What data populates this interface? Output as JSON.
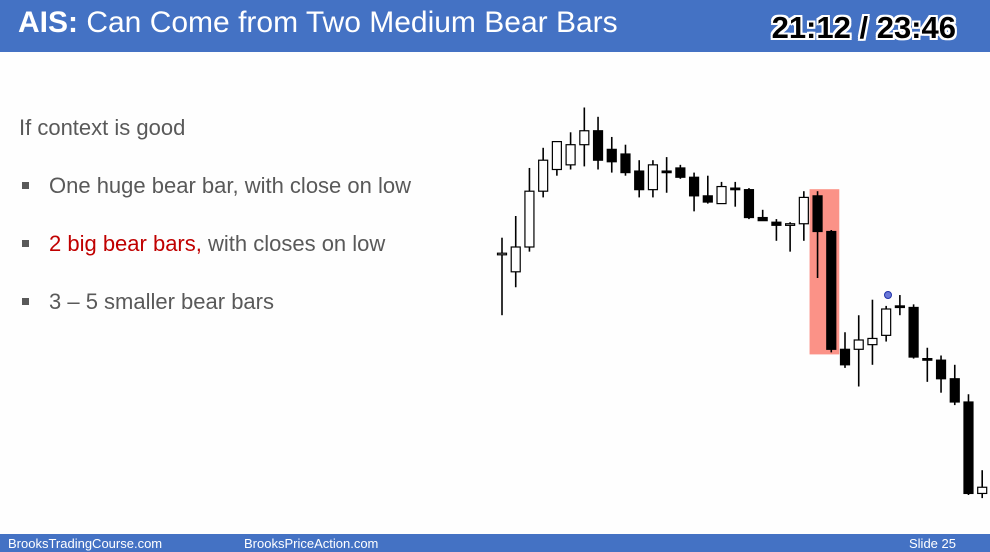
{
  "header": {
    "title_bold": "AIS:",
    "title_rest": " Can Come from Two Medium Bear Bars",
    "timer": "21:12 / 23:46"
  },
  "content": {
    "intro": "If context is good",
    "bullets": [
      {
        "highlight": "",
        "text": "One huge bear bar, with close on low"
      },
      {
        "highlight": "2 big bear bars,",
        "text": " with closes on low"
      },
      {
        "highlight": "",
        "text": "3 – 5 smaller bear bars"
      }
    ]
  },
  "footer": {
    "left": "BrooksTradingCourse.com",
    "center": "BrooksPriceAction.com",
    "right": "Slide  25"
  },
  "colors": {
    "header_bg": "#4472c4",
    "highlight_text": "#c00000",
    "highlight_box": "#fa7f72",
    "bear_body": "#000000",
    "bull_body": "#ffffff"
  },
  "chart_data": {
    "type": "candlestick",
    "annotation": "two medium bear bars highlighted with a red box",
    "highlighted_bars": [
      23,
      24
    ],
    "bars": [
      {
        "o": 148.0,
        "h": 153.0,
        "l": 128.0,
        "c": 148.0
      },
      {
        "o": 142.0,
        "h": 160.0,
        "l": 137.0,
        "c": 150.0
      },
      {
        "o": 150.0,
        "h": 175.5,
        "l": 148.5,
        "c": 168.0
      },
      {
        "o": 168.0,
        "h": 182.0,
        "l": 166.0,
        "c": 178.0
      },
      {
        "o": 175.0,
        "h": 183.5,
        "l": 173.0,
        "c": 184.0
      },
      {
        "o": 176.5,
        "h": 187.0,
        "l": 175.0,
        "c": 183.0
      },
      {
        "o": 183.0,
        "h": 195.0,
        "l": 176.0,
        "c": 187.5
      },
      {
        "o": 187.5,
        "h": 192.0,
        "l": 175.0,
        "c": 178.0
      },
      {
        "o": 181.5,
        "h": 185.5,
        "l": 174.0,
        "c": 177.5
      },
      {
        "o": 180.0,
        "h": 183.0,
        "l": 173.0,
        "c": 174.0
      },
      {
        "o": 174.5,
        "h": 178.0,
        "l": 166.0,
        "c": 168.5
      },
      {
        "o": 168.5,
        "h": 178.0,
        "l": 166.0,
        "c": 176.5
      },
      {
        "o": 174.5,
        "h": 179.0,
        "l": 167.5,
        "c": 174.0
      },
      {
        "o": 175.5,
        "h": 176.5,
        "l": 172.0,
        "c": 172.5
      },
      {
        "o": 172.5,
        "h": 174.0,
        "l": 161.5,
        "c": 166.5
      },
      {
        "o": 166.5,
        "h": 173.0,
        "l": 164.0,
        "c": 164.5
      },
      {
        "o": 164.0,
        "h": 171.0,
        "l": 164.0,
        "c": 169.5
      },
      {
        "o": 169.0,
        "h": 171.0,
        "l": 163.0,
        "c": 168.5
      },
      {
        "o": 168.5,
        "h": 169.0,
        "l": 159.0,
        "c": 159.5
      },
      {
        "o": 159.5,
        "h": 162.0,
        "l": 158.5,
        "c": 158.5
      },
      {
        "o": 158.0,
        "h": 159.0,
        "l": 152.0,
        "c": 157.0
      },
      {
        "o": 157.0,
        "h": 158.0,
        "l": 148.5,
        "c": 157.5
      },
      {
        "o": 157.5,
        "h": 168.0,
        "l": 152.0,
        "c": 166.0
      },
      {
        "o": 166.5,
        "h": 168.0,
        "l": 140.0,
        "c": 155.0
      },
      {
        "o": 155.0,
        "h": 155.5,
        "l": 116.0,
        "c": 117.0
      },
      {
        "o": 117.0,
        "h": 122.5,
        "l": 111.0,
        "c": 112.0
      },
      {
        "o": 117.0,
        "h": 128.0,
        "l": 105.0,
        "c": 120.0
      },
      {
        "o": 118.5,
        "h": 133.0,
        "l": 112.0,
        "c": 120.5
      },
      {
        "o": 121.5,
        "h": 131.0,
        "l": 119.5,
        "c": 130.0
      },
      {
        "o": 131.0,
        "h": 134.5,
        "l": 128.0,
        "c": 130.5
      },
      {
        "o": 130.5,
        "h": 131.5,
        "l": 114.0,
        "c": 114.5
      },
      {
        "o": 114.0,
        "h": 117.5,
        "l": 106.5,
        "c": 113.5
      },
      {
        "o": 113.5,
        "h": 115.0,
        "l": 103.0,
        "c": 107.5
      },
      {
        "o": 107.5,
        "h": 112.0,
        "l": 99.0,
        "c": 100.0
      },
      {
        "o": 100.0,
        "h": 102.5,
        "l": 70.0,
        "c": 70.5
      },
      {
        "o": 70.5,
        "h": 78.0,
        "l": 69.0,
        "c": 72.5
      }
    ]
  }
}
